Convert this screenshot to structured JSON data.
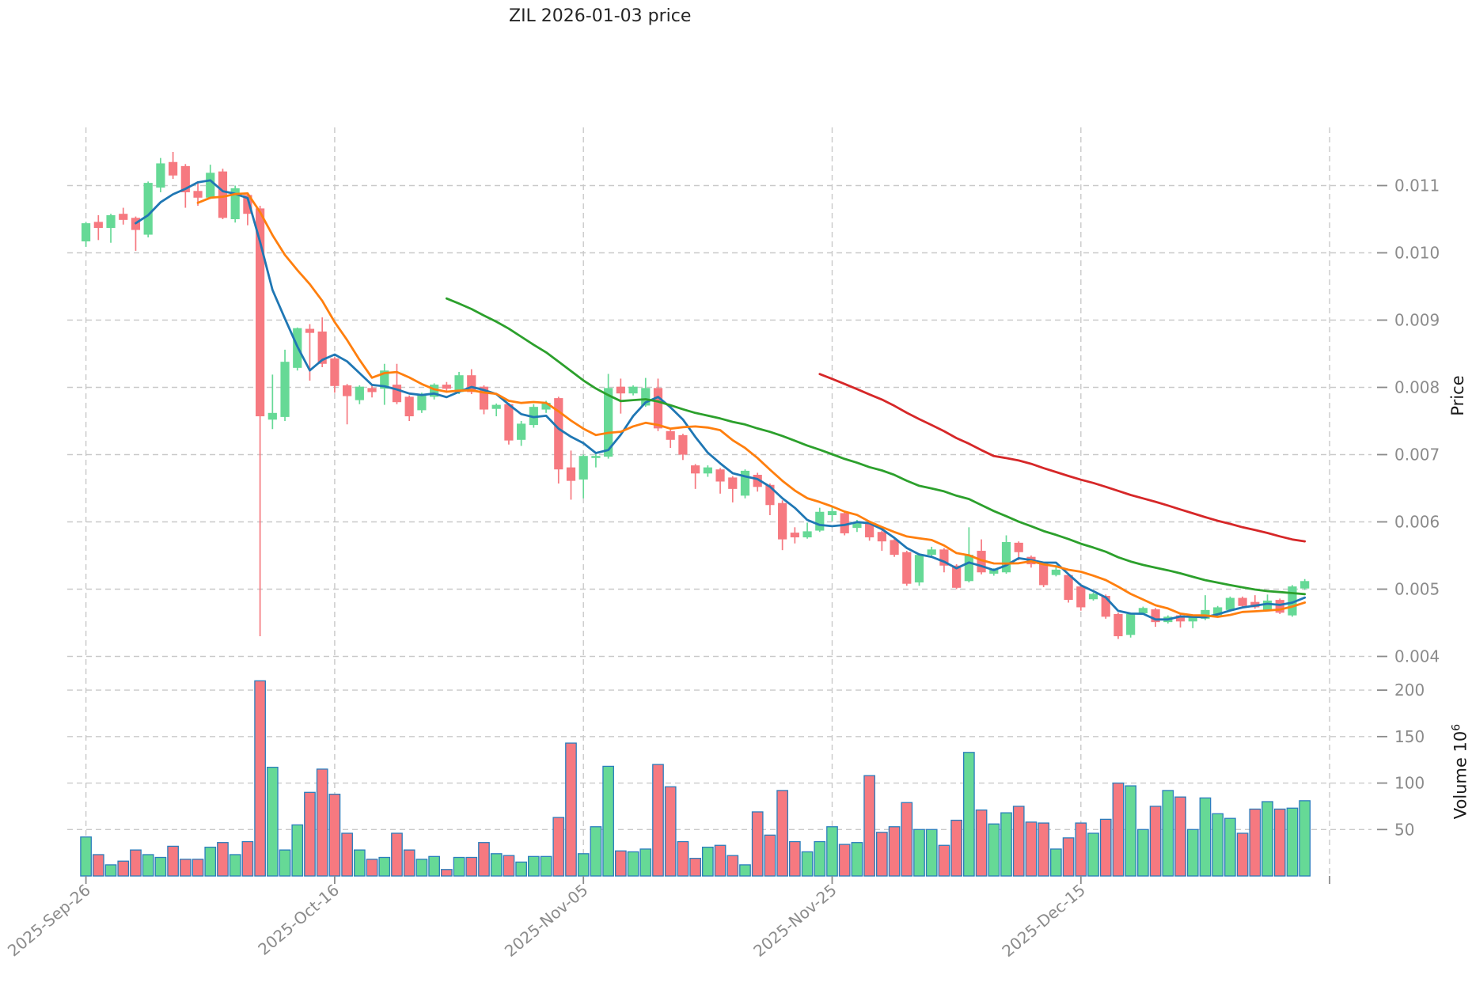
{
  "title": "ZIL  2026-01-03  price",
  "axes": {
    "price_label": "Price",
    "volume_label_text": "Volume  10",
    "volume_label_exp": "6"
  },
  "chart_data": {
    "type": "candlestick",
    "title": "ZIL  2026-01-03  price",
    "xlabel": "",
    "ylabel_price": "Price",
    "ylabel_volume": "Volume 10^6",
    "grid": true,
    "legend": "none",
    "price_axis": {
      "ticks": [
        0.004,
        0.005,
        0.006,
        0.007,
        0.008,
        0.009,
        0.01,
        0.011
      ],
      "range": [
        0.0038,
        0.0119
      ]
    },
    "volume_axis": {
      "ticks": [
        50,
        100,
        150,
        200
      ],
      "range": [
        0,
        217
      ]
    },
    "x_axis": {
      "ticks": [
        {
          "i": 0,
          "label": "2025-Sep-26"
        },
        {
          "i": 20,
          "label": "2025-Oct-16"
        },
        {
          "i": 40,
          "label": "2025-Nov-05"
        },
        {
          "i": 60,
          "label": "2025-Nov-25"
        },
        {
          "i": 80,
          "label": "2025-Dec-15"
        },
        {
          "i": 100,
          "label": ""
        }
      ]
    },
    "moving_averages": [
      {
        "period": 5,
        "color": "#1f77b4"
      },
      {
        "period": 10,
        "color": "#ff7f0e"
      },
      {
        "period": 30,
        "color": "#2ca02c"
      },
      {
        "period": 60,
        "color": "#d62728"
      }
    ],
    "colors": {
      "up": "#66d996",
      "down": "#f67980",
      "volume_edge": "#2a7dbd",
      "grid": "#c9c9c9",
      "tick_label": "#8b8b8b",
      "title": "#262626"
    },
    "candles": {
      "dates": [
        "2025-09-26",
        "2025-09-27",
        "2025-09-28",
        "2025-09-29",
        "2025-09-30",
        "2025-10-01",
        "2025-10-02",
        "2025-10-03",
        "2025-10-04",
        "2025-10-05",
        "2025-10-06",
        "2025-10-07",
        "2025-10-08",
        "2025-10-09",
        "2025-10-10",
        "2025-10-11",
        "2025-10-12",
        "2025-10-13",
        "2025-10-14",
        "2025-10-15",
        "2025-10-16",
        "2025-10-17",
        "2025-10-18",
        "2025-10-19",
        "2025-10-20",
        "2025-10-21",
        "2025-10-22",
        "2025-10-23",
        "2025-10-24",
        "2025-10-25",
        "2025-10-26",
        "2025-10-27",
        "2025-10-28",
        "2025-10-29",
        "2025-10-30",
        "2025-10-31",
        "2025-11-01",
        "2025-11-02",
        "2025-11-03",
        "2025-11-04",
        "2025-11-05",
        "2025-11-06",
        "2025-11-07",
        "2025-11-08",
        "2025-11-09",
        "2025-11-10",
        "2025-11-11",
        "2025-11-12",
        "2025-11-13",
        "2025-11-14",
        "2025-11-15",
        "2025-11-16",
        "2025-11-17",
        "2025-11-18",
        "2025-11-19",
        "2025-11-20",
        "2025-11-21",
        "2025-11-22",
        "2025-11-23",
        "2025-11-24",
        "2025-11-25",
        "2025-11-26",
        "2025-11-27",
        "2025-11-28",
        "2025-11-29",
        "2025-11-30",
        "2025-12-01",
        "2025-12-02",
        "2025-12-03",
        "2025-12-04",
        "2025-12-05",
        "2025-12-06",
        "2025-12-07",
        "2025-12-08",
        "2025-12-09",
        "2025-12-10",
        "2025-12-11",
        "2025-12-12",
        "2025-12-13",
        "2025-12-14",
        "2025-12-15",
        "2025-12-16",
        "2025-12-17",
        "2025-12-18",
        "2025-12-19",
        "2025-12-20",
        "2025-12-21",
        "2025-12-22",
        "2025-12-23",
        "2025-12-24",
        "2025-12-25",
        "2025-12-26",
        "2025-12-27",
        "2025-12-28",
        "2025-12-29",
        "2025-12-30",
        "2025-12-31",
        "2026-01-01",
        "2026-01-02"
      ],
      "open": [
        0.01017,
        0.01046,
        0.01037,
        0.01058,
        0.01052,
        0.01027,
        0.01097,
        0.01135,
        0.01129,
        0.01092,
        0.01082,
        0.01121,
        0.0105,
        0.01086,
        0.01066,
        0.00752,
        0.00756,
        0.00829,
        0.00887,
        0.00883,
        0.00843,
        0.00803,
        0.00781,
        0.00799,
        0.00798,
        0.00804,
        0.00786,
        0.00766,
        0.00786,
        0.00804,
        0.00793,
        0.00818,
        0.00801,
        0.00768,
        0.00775,
        0.00722,
        0.00744,
        0.00767,
        0.00784,
        0.00681,
        0.00663,
        0.00695,
        0.00697,
        0.00801,
        0.00791,
        0.00773,
        0.00799,
        0.00735,
        0.00729,
        0.00684,
        0.00672,
        0.00678,
        0.00666,
        0.00639,
        0.0067,
        0.00655,
        0.00628,
        0.00584,
        0.00577,
        0.00587,
        0.0061,
        0.00613,
        0.00591,
        0.00597,
        0.00585,
        0.00573,
        0.00555,
        0.0051,
        0.00551,
        0.00559,
        0.00535,
        0.00512,
        0.00557,
        0.00523,
        0.00525,
        0.00569,
        0.00548,
        0.00538,
        0.00521,
        0.00521,
        0.00504,
        0.00485,
        0.0049,
        0.00463,
        0.00432,
        0.00464,
        0.0047,
        0.00451,
        0.00461,
        0.00452,
        0.00456,
        0.00461,
        0.00469,
        0.00487,
        0.00481,
        0.00469,
        0.00484,
        0.00461,
        0.00501
      ],
      "high": [
        0.01046,
        0.01056,
        0.01058,
        0.01067,
        0.01054,
        0.01106,
        0.01141,
        0.0115,
        0.01132,
        0.01105,
        0.01131,
        0.01125,
        0.011,
        0.01088,
        0.0107,
        0.00819,
        0.00856,
        0.00889,
        0.00894,
        0.00904,
        0.00845,
        0.00805,
        0.00803,
        0.00805,
        0.00835,
        0.00835,
        0.00788,
        0.00792,
        0.00806,
        0.00808,
        0.00823,
        0.00827,
        0.00803,
        0.00776,
        0.00777,
        0.0075,
        0.00775,
        0.0078,
        0.00786,
        0.00706,
        0.007,
        0.00704,
        0.0082,
        0.00813,
        0.00803,
        0.00814,
        0.00813,
        0.00737,
        0.00731,
        0.00686,
        0.00684,
        0.0068,
        0.00668,
        0.00678,
        0.00673,
        0.00657,
        0.00632,
        0.00592,
        0.00599,
        0.00621,
        0.00622,
        0.00615,
        0.00603,
        0.00599,
        0.00587,
        0.00575,
        0.00557,
        0.00553,
        0.00563,
        0.00561,
        0.00537,
        0.00592,
        0.00574,
        0.00531,
        0.0058,
        0.00571,
        0.0055,
        0.0054,
        0.00536,
        0.00523,
        0.00506,
        0.00495,
        0.00492,
        0.00465,
        0.00465,
        0.00474,
        0.00472,
        0.00461,
        0.00463,
        0.00462,
        0.00491,
        0.00475,
        0.00489,
        0.00489,
        0.00491,
        0.00492,
        0.00486,
        0.00506,
        0.00515
      ],
      "low": [
        0.01009,
        0.01019,
        0.01015,
        0.01042,
        0.01003,
        0.01023,
        0.0109,
        0.0111,
        0.01067,
        0.0107,
        0.0108,
        0.0105,
        0.01045,
        0.01041,
        0.0043,
        0.00738,
        0.0075,
        0.00825,
        0.0081,
        0.0083,
        0.00792,
        0.00745,
        0.00775,
        0.00785,
        0.00774,
        0.00775,
        0.0075,
        0.00762,
        0.00782,
        0.00792,
        0.0079,
        0.0079,
        0.0076,
        0.00757,
        0.00715,
        0.00713,
        0.0074,
        0.00762,
        0.00657,
        0.00633,
        0.00635,
        0.00681,
        0.00694,
        0.00761,
        0.00788,
        0.00771,
        0.00735,
        0.0071,
        0.00692,
        0.00649,
        0.00667,
        0.00642,
        0.00629,
        0.00635,
        0.00645,
        0.0061,
        0.00558,
        0.00568,
        0.00575,
        0.00585,
        0.00601,
        0.0058,
        0.00585,
        0.00572,
        0.00557,
        0.00548,
        0.00505,
        0.00505,
        0.00548,
        0.00525,
        0.005,
        0.0051,
        0.00522,
        0.0052,
        0.00523,
        0.00543,
        0.00532,
        0.00503,
        0.00519,
        0.0048,
        0.00468,
        0.00483,
        0.00456,
        0.00426,
        0.00428,
        0.00462,
        0.00444,
        0.00449,
        0.00443,
        0.00442,
        0.00454,
        0.00459,
        0.00467,
        0.00473,
        0.00471,
        0.00467,
        0.00463,
        0.00459,
        0.00499
      ],
      "close": [
        0.01044,
        0.01037,
        0.01056,
        0.01049,
        0.01034,
        0.01104,
        0.01133,
        0.01115,
        0.0109,
        0.01082,
        0.01119,
        0.01052,
        0.01096,
        0.01058,
        0.00757,
        0.00762,
        0.00838,
        0.00888,
        0.00881,
        0.00835,
        0.00802,
        0.00787,
        0.00801,
        0.00793,
        0.00825,
        0.00778,
        0.00757,
        0.0079,
        0.00804,
        0.00798,
        0.00818,
        0.00793,
        0.00767,
        0.00774,
        0.00721,
        0.00746,
        0.00771,
        0.00777,
        0.00678,
        0.00661,
        0.00698,
        0.00698,
        0.00799,
        0.00791,
        0.00801,
        0.00799,
        0.00739,
        0.00722,
        0.007,
        0.00672,
        0.00681,
        0.0066,
        0.00649,
        0.00676,
        0.00652,
        0.00625,
        0.00574,
        0.00577,
        0.00586,
        0.00615,
        0.00616,
        0.00583,
        0.00599,
        0.00577,
        0.00571,
        0.00551,
        0.00508,
        0.00551,
        0.00559,
        0.00535,
        0.00502,
        0.00551,
        0.00525,
        0.00529,
        0.0057,
        0.00555,
        0.00537,
        0.00506,
        0.00529,
        0.00484,
        0.00473,
        0.00493,
        0.00459,
        0.0043,
        0.00463,
        0.00472,
        0.00451,
        0.00459,
        0.00452,
        0.0046,
        0.00469,
        0.00473,
        0.00487,
        0.00475,
        0.00473,
        0.00483,
        0.00465,
        0.00504,
        0.00512
      ],
      "volume": [
        42,
        23,
        12,
        16,
        28,
        23,
        20,
        32,
        18,
        18,
        31,
        36,
        23,
        37,
        210,
        117,
        28,
        55,
        90,
        115,
        88,
        46,
        28,
        18,
        20,
        46,
        28,
        18,
        21,
        7,
        20,
        20,
        36,
        24,
        22,
        15,
        21,
        21,
        63,
        143,
        24,
        53,
        118,
        27,
        26,
        29,
        120,
        96,
        37,
        19,
        31,
        33,
        22,
        12,
        69,
        44,
        92,
        37,
        26,
        37,
        53,
        34,
        36,
        108,
        47,
        53,
        79,
        50,
        50,
        33,
        60,
        133,
        71,
        56,
        68,
        75,
        58,
        57,
        29,
        41,
        57,
        46,
        61,
        100,
        97,
        50,
        75,
        92,
        85,
        50,
        84,
        67,
        62,
        46,
        72,
        80,
        72,
        73,
        81
      ]
    }
  }
}
